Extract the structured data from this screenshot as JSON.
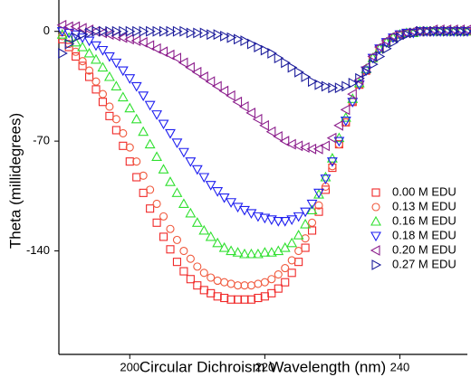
{
  "chart_data": {
    "type": "scatter",
    "x_label": "Circular Dichroism Wavelength (nm)",
    "y_label": "Theta (millidegrees)",
    "x": [
      190,
      191,
      192,
      193,
      194,
      195,
      196,
      197,
      198,
      199,
      200,
      201,
      202,
      203,
      204,
      205,
      206,
      207,
      208,
      209,
      210,
      211,
      212,
      213,
      214,
      215,
      216,
      217,
      218,
      219,
      220,
      221,
      222,
      223,
      224,
      225,
      226,
      227,
      228,
      229,
      230,
      231,
      232,
      233,
      234,
      235,
      236,
      237,
      238,
      239,
      240,
      241,
      242,
      243,
      244,
      245,
      246,
      247,
      248,
      249,
      250
    ],
    "xlim": [
      189.5,
      250
    ],
    "ylim": [
      -206,
      20
    ],
    "xticks": [
      200,
      220,
      240
    ],
    "yticks": [
      0,
      -70,
      -140
    ],
    "legend": "right",
    "series": [
      {
        "name": "0.00 M EDU",
        "color": "#f02828",
        "marker": "square",
        "values": [
          -5,
          -10,
          -16,
          -22,
          -29,
          -37,
          -45,
          -54,
          -63,
          -73,
          -83,
          -93,
          -103,
          -113,
          -122,
          -131,
          -139,
          -147,
          -153,
          -158,
          -162,
          -165,
          -167,
          -169,
          -170,
          -171,
          -171,
          -171,
          -171,
          -170,
          -169,
          -167,
          -164,
          -160,
          -154,
          -147,
          -138,
          -127,
          -115,
          -101,
          -87,
          -72,
          -58,
          -45,
          -34,
          -25,
          -17,
          -11,
          -7,
          -4,
          -2,
          -1,
          -1,
          0,
          0,
          0,
          0,
          0,
          0,
          0,
          0
        ]
      },
      {
        "name": "0.13 M EDU",
        "color": "#f0583c",
        "marker": "circle",
        "values": [
          -3,
          -8,
          -13,
          -19,
          -25,
          -32,
          -40,
          -48,
          -56,
          -65,
          -74,
          -83,
          -92,
          -101,
          -110,
          -118,
          -126,
          -133,
          -140,
          -145,
          -150,
          -154,
          -157,
          -159,
          -160,
          -161,
          -162,
          -162,
          -162,
          -161,
          -160,
          -158,
          -155,
          -151,
          -146,
          -140,
          -132,
          -122,
          -111,
          -99,
          -86,
          -72,
          -58,
          -45,
          -34,
          -25,
          -17,
          -11,
          -7,
          -4,
          -2,
          -1,
          -1,
          0,
          0,
          0,
          0,
          0,
          0,
          0,
          0
        ]
      },
      {
        "name": "0.16 M EDU",
        "color": "#30e030",
        "marker": "triangle-up",
        "values": [
          -2,
          -4,
          -7,
          -10,
          -14,
          -18,
          -23,
          -29,
          -35,
          -42,
          -49,
          -56,
          -64,
          -72,
          -80,
          -88,
          -96,
          -103,
          -110,
          -116,
          -122,
          -127,
          -131,
          -135,
          -138,
          -140,
          -141,
          -142,
          -142,
          -142,
          -141,
          -141,
          -140,
          -138,
          -135,
          -130,
          -123,
          -114,
          -104,
          -93,
          -81,
          -68,
          -55,
          -43,
          -33,
          -24,
          -17,
          -11,
          -7,
          -4,
          -2,
          -1,
          -1,
          0,
          0,
          0,
          0,
          0,
          0,
          0,
          0
        ]
      },
      {
        "name": "0.18 M EDU",
        "color": "#1e1ef0",
        "marker": "triangle-down",
        "values": [
          0,
          -1,
          -2,
          -4,
          -6,
          -9,
          -12,
          -16,
          -20,
          -25,
          -30,
          -35,
          -41,
          -47,
          -53,
          -59,
          -65,
          -71,
          -77,
          -83,
          -88,
          -93,
          -98,
          -102,
          -106,
          -109,
          -112,
          -114,
          -116,
          -118,
          -119,
          -120,
          -121,
          -121,
          -120,
          -118,
          -115,
          -110,
          -103,
          -94,
          -83,
          -70,
          -57,
          -45,
          -34,
          -25,
          -17,
          -11,
          -7,
          -4,
          -2,
          -1,
          -1,
          0,
          0,
          0,
          0,
          0,
          0,
          0,
          0
        ]
      },
      {
        "name": "0.20 M EDU",
        "color": "#8c1e8c",
        "marker": "triangle-left",
        "values": [
          4,
          3,
          3,
          2,
          1,
          0,
          -1,
          -2,
          -3,
          -4,
          -5,
          -6,
          -7,
          -9,
          -11,
          -13,
          -15,
          -17,
          -20,
          -23,
          -26,
          -29,
          -32,
          -35,
          -38,
          -41,
          -45,
          -48,
          -52,
          -56,
          -60,
          -64,
          -67,
          -70,
          -72,
          -73,
          -74,
          -75,
          -75,
          -73,
          -68,
          -60,
          -50,
          -40,
          -31,
          -23,
          -16,
          -10,
          -6,
          -3,
          -2,
          -1,
          0,
          0,
          0,
          1,
          1,
          1,
          1,
          1,
          1
        ]
      },
      {
        "name": "0.27 M EDU",
        "color": "#1e1e9c",
        "marker": "triangle-right",
        "values": [
          -14,
          -8,
          -4,
          -2,
          -1,
          0,
          0,
          0,
          0,
          0,
          0,
          0,
          0,
          0,
          0,
          0,
          0,
          0,
          0,
          -1,
          -1,
          -1,
          -2,
          -2,
          -3,
          -4,
          -5,
          -6,
          -8,
          -10,
          -12,
          -14,
          -17,
          -20,
          -23,
          -26,
          -29,
          -32,
          -34,
          -35,
          -36,
          -36,
          -35,
          -33,
          -30,
          -26,
          -21,
          -16,
          -11,
          -7,
          -4,
          -2,
          -1,
          0,
          0,
          0,
          0,
          0,
          0,
          0,
          0
        ]
      }
    ]
  }
}
